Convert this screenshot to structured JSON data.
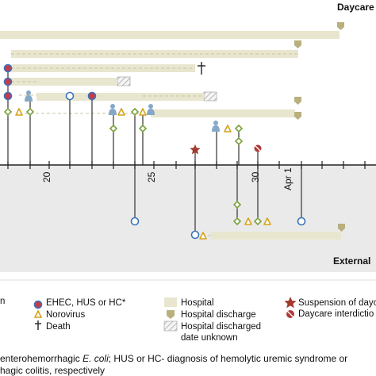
{
  "labels": {
    "top_group": "Daycare",
    "bottom_group": "External",
    "axis_ticks": [
      "20",
      "25",
      "30",
      "Apr 1"
    ]
  },
  "legend": {
    "ehec": "EHEC, HUS or HC*",
    "norovirus": "Norovirus",
    "death": "Death",
    "hospital": "Hospital",
    "hospital_discharge": "Hospital discharge",
    "hospital_discharged_unknown_line1": "Hospital discharged",
    "hospital_discharged_unknown_line2": "date unknown",
    "suspension": "Suspension of dayca",
    "interdiction": "Daycare interdictio",
    "partial_left": "n"
  },
  "footnote": {
    "line1_a": "enterohemorrhagic ",
    "line1_b": "E. coli",
    "line1_c": "; HUS or HC- diagnosis of hemolytic uremic  syndrome or",
    "line2": "hagic  colitis, respectively"
  },
  "colors": {
    "hospital_bar": "#e9e6cf",
    "discharge_marker": "#b8b07e",
    "ehec_fill": "#c33b4d",
    "ehec_ring": "#3a73b8",
    "norovirus": "#d6a21a",
    "diamond": "#7aa23f",
    "person": "#86a8c8",
    "suspension_star": "#a33a2e",
    "interdiction": "#b03a3a",
    "dashed_link": "#c8c4a0",
    "axis": "#222222"
  }
}
